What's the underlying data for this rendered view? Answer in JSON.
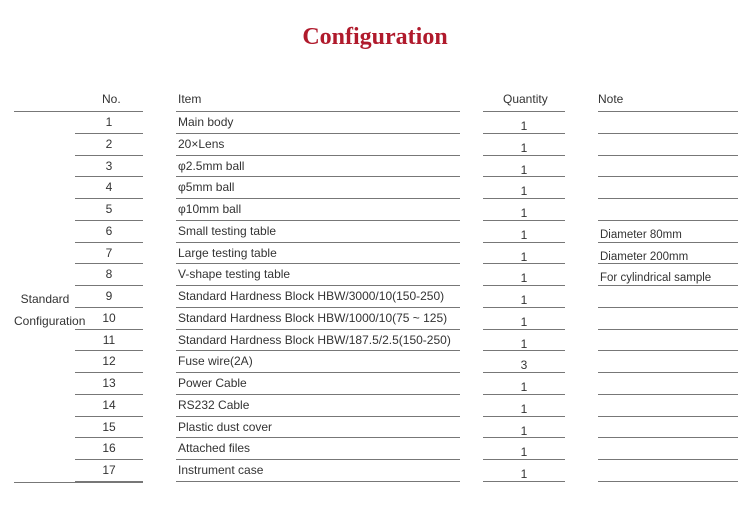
{
  "title": "Configuration",
  "headers": {
    "no": "No.",
    "item": "Item",
    "quantity": "Quantity",
    "note": "Note"
  },
  "group_label": "Standard\nConfiguration",
  "rows": [
    {
      "no": "1",
      "item": "Main body",
      "quantity": "1",
      "note": ""
    },
    {
      "no": "2",
      "item": "20×Lens",
      "quantity": "1",
      "note": ""
    },
    {
      "no": "3",
      "item": "φ2.5mm ball",
      "quantity": "1",
      "note": ""
    },
    {
      "no": "4",
      "item": "φ5mm ball",
      "quantity": "1",
      "note": ""
    },
    {
      "no": "5",
      "item": "φ10mm ball",
      "quantity": "1",
      "note": ""
    },
    {
      "no": "6",
      "item": "Small testing table",
      "quantity": "1",
      "note": "Diameter 80mm"
    },
    {
      "no": "7",
      "item": "Large testing table",
      "quantity": "1",
      "note": "Diameter 200mm"
    },
    {
      "no": "8",
      "item": "V-shape testing table",
      "quantity": "1",
      "note": "For cylindrical sample"
    },
    {
      "no": "9",
      "item": "Standard Hardness Block  HBW/3000/10(150-250)",
      "quantity": "1",
      "note": ""
    },
    {
      "no": "10",
      "item": "Standard Hardness Block  HBW/1000/10(75 ~ 125)",
      "quantity": "1",
      "note": ""
    },
    {
      "no": "11",
      "item": "Standard Hardness Block  HBW/187.5/2.5(150-250)",
      "quantity": "1",
      "note": ""
    },
    {
      "no": "12",
      "item": "Fuse wire(2A)",
      "quantity": "3",
      "note": ""
    },
    {
      "no": "13",
      "item": "Power Cable",
      "quantity": "1",
      "note": ""
    },
    {
      "no": "14",
      "item": "RS232 Cable",
      "quantity": "1",
      "note": ""
    },
    {
      "no": "15",
      "item": "Plastic dust cover",
      "quantity": "1",
      "note": ""
    },
    {
      "no": "16",
      "item": "Attached files",
      "quantity": "1",
      "note": ""
    },
    {
      "no": "17",
      "item": "Instrument case",
      "quantity": "1",
      "note": ""
    }
  ]
}
